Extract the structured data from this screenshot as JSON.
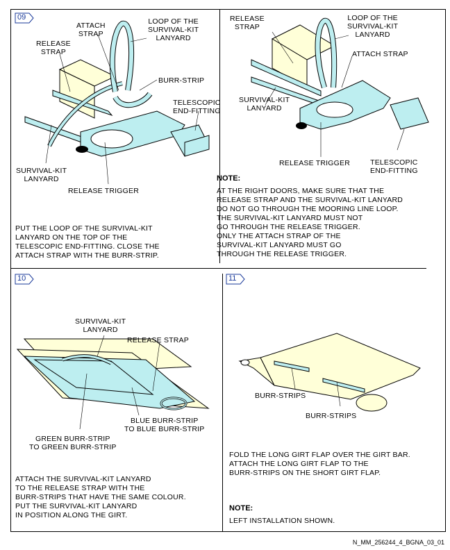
{
  "colors": {
    "strap": "#bdeef0",
    "burr": "#ffffd8",
    "step_badge": "#1a3a9a"
  },
  "steps": {
    "s09": {
      "num": "09",
      "labels": {
        "attach_strap": "ATTACH\nSTRAP",
        "loop": "LOOP OF THE\nSURVIVAL-KIT\nLANYARD",
        "release_strap": "RELEASE\nSTRAP",
        "burr_strip": "BURR-STRIP",
        "telescopic": "TELESCOPIC\nEND-FITTING",
        "survival_kit": "SURVIVAL-KIT\nLANYARD",
        "release_trigger": "RELEASE TRIGGER"
      },
      "instruction": "PUT THE LOOP OF THE SURVIVAL-KIT\nLANYARD ON THE TOP OF THE\nTELESCOPIC END-FITTING. CLOSE THE\nATTACH STRAP WITH THE BURR-STRIP."
    },
    "s09b": {
      "labels": {
        "release_strap": "RELEASE\nSTRAP",
        "loop": "LOOP OF THE\nSURVIVAL-KIT\nLANYARD",
        "attach_strap": "ATTACH STRAP",
        "survival_kit": "SURVIVAL-KIT\nLANYARD",
        "release_trigger": "RELEASE TRIGGER",
        "telescopic": "TELESCOPIC\nEND-FITTING"
      },
      "note_title": "NOTE:",
      "note_text": "AT THE RIGHT DOORS, MAKE SURE THAT THE\nRELEASE STRAP AND THE SURVIVAL-KIT LANYARD\nDO NOT GO THROUGH THE MOORING LINE LOOP.\nTHE SURVIVAL-KIT LANYARD MUST NOT\nGO THROUGH THE RELEASE TRIGGER.\nONLY THE ATTACH STRAP OF THE\nSURVIVAL-KIT LANYARD MUST GO\nTHROUGH THE RELEASE TRIGGER."
    },
    "s10": {
      "num": "10",
      "labels": {
        "survival_kit": "SURVIVAL-KIT\nLANYARD",
        "release_strap": "RELEASE STRAP",
        "blue": "BLUE BURR-STRIP\nTO BLUE BURR-STRIP",
        "green": "GREEN BURR-STRIP\nTO GREEN BURR-STRIP"
      },
      "instruction": "ATTACH THE SURVIVAL-KIT LANYARD\nTO THE RELEASE STRAP WITH THE\nBURR-STRIPS THAT HAVE THE SAME COLOUR.\nPUT THE SURVIVAL-KIT LANYARD\nIN POSITION ALONG THE GIRT."
    },
    "s11": {
      "num": "11",
      "labels": {
        "burr1": "BURR-STRIPS",
        "burr2": "BURR-STRIPS"
      },
      "instruction": "FOLD THE LONG GIRT FLAP OVER THE GIRT BAR.\nATTACH THE LONG GIRT FLAP TO THE\nBURR-STRIPS ON THE SHORT GIRT FLAP.",
      "note_title": "NOTE:",
      "note_text": "LEFT INSTALLATION SHOWN."
    }
  },
  "doc_ref": "N_MM_256244_4_BGNA_03_01"
}
